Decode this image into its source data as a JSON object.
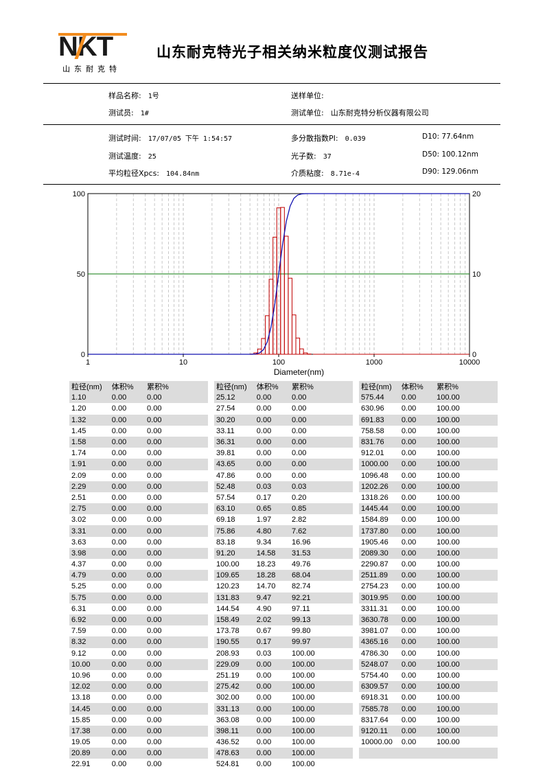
{
  "header": {
    "logo_text": "NKT",
    "logo_sub": "山东耐克特",
    "title": "山东耐克特光子相关纳米粒度仪测试报告"
  },
  "sample": {
    "name_label": "样品名称:",
    "name_value": "1号",
    "tester_label": "测试员:",
    "tester_value": "1#",
    "sender_label": "送样单位:",
    "sender_value": "",
    "unit_label": "测试单位:",
    "unit_value": "山东耐克特分析仪器有限公司"
  },
  "test": {
    "time_label": "测试时间:",
    "time_value": "17/07/05 下午 1:54:57",
    "temp_label": "测试温度:",
    "temp_value": "25",
    "avg_label": "平均粒径Xpcs:",
    "avg_value": "104.84nm",
    "pi_label": "多分散指数PI:",
    "pi_value": "0.039",
    "photon_label": "光子数:",
    "photon_value": "37",
    "visc_label": "介质粘度:",
    "visc_value": "8.71e-4",
    "d10": "D10: 77.64nm",
    "d50": "D50: 100.12nm",
    "d90": "D90: 129.06nm"
  },
  "chart_data": {
    "type": "bar",
    "xlabel": "Diameter(nm)",
    "x_scale": "log",
    "xlim": [
      1,
      10000
    ],
    "x_ticks": [
      "1",
      "10",
      "100",
      "1000",
      "10000"
    ],
    "y_left_ticks": [
      "0",
      "50",
      "100"
    ],
    "y_right_ticks": [
      "0",
      "10",
      "20"
    ],
    "ylim_left": [
      0,
      100
    ],
    "ylim_right": [
      0,
      20
    ],
    "reference_line": 50,
    "series": [
      {
        "type": "bar",
        "axis": "right",
        "x": [
          52.48,
          57.54,
          63.1,
          69.18,
          75.86,
          83.18,
          91.2,
          100.0,
          109.65,
          120.23,
          131.83,
          144.54,
          158.49,
          173.78,
          190.55,
          208.93
        ],
        "values": [
          0.03,
          0.17,
          0.65,
          1.97,
          4.8,
          9.34,
          14.58,
          18.23,
          18.28,
          14.7,
          9.47,
          4.9,
          2.02,
          0.67,
          0.17,
          0.03
        ]
      },
      {
        "type": "line",
        "axis": "left",
        "x": [
          47.86,
          52.48,
          57.54,
          63.1,
          69.18,
          75.86,
          83.18,
          91.2,
          100.0,
          109.65,
          120.23,
          131.83,
          144.54,
          158.49,
          173.78,
          190.55,
          208.93,
          229.09
        ],
        "values": [
          0.0,
          0.03,
          0.2,
          0.85,
          2.82,
          7.62,
          16.96,
          31.53,
          49.76,
          68.04,
          82.74,
          92.21,
          97.11,
          99.13,
          99.8,
          99.97,
          100.0,
          100.0
        ]
      }
    ]
  },
  "table": {
    "headers": [
      "粒径(nm)",
      "体积%",
      "累积%"
    ],
    "columns": [
      [
        [
          "1.10",
          "0.00",
          "0.00"
        ],
        [
          "1.20",
          "0.00",
          "0.00"
        ],
        [
          "1.32",
          "0.00",
          "0.00"
        ],
        [
          "1.45",
          "0.00",
          "0.00"
        ],
        [
          "1.58",
          "0.00",
          "0.00"
        ],
        [
          "1.74",
          "0.00",
          "0.00"
        ],
        [
          "1.91",
          "0.00",
          "0.00"
        ],
        [
          "2.09",
          "0.00",
          "0.00"
        ],
        [
          "2.29",
          "0.00",
          "0.00"
        ],
        [
          "2.51",
          "0.00",
          "0.00"
        ],
        [
          "2.75",
          "0.00",
          "0.00"
        ],
        [
          "3.02",
          "0.00",
          "0.00"
        ],
        [
          "3.31",
          "0.00",
          "0.00"
        ],
        [
          "3.63",
          "0.00",
          "0.00"
        ],
        [
          "3.98",
          "0.00",
          "0.00"
        ],
        [
          "4.37",
          "0.00",
          "0.00"
        ],
        [
          "4.79",
          "0.00",
          "0.00"
        ],
        [
          "5.25",
          "0.00",
          "0.00"
        ],
        [
          "5.75",
          "0.00",
          "0.00"
        ],
        [
          "6.31",
          "0.00",
          "0.00"
        ],
        [
          "6.92",
          "0.00",
          "0.00"
        ],
        [
          "7.59",
          "0.00",
          "0.00"
        ],
        [
          "8.32",
          "0.00",
          "0.00"
        ],
        [
          "9.12",
          "0.00",
          "0.00"
        ],
        [
          "10.00",
          "0.00",
          "0.00"
        ],
        [
          "10.96",
          "0.00",
          "0.00"
        ],
        [
          "12.02",
          "0.00",
          "0.00"
        ],
        [
          "13.18",
          "0.00",
          "0.00"
        ],
        [
          "14.45",
          "0.00",
          "0.00"
        ],
        [
          "15.85",
          "0.00",
          "0.00"
        ],
        [
          "17.38",
          "0.00",
          "0.00"
        ],
        [
          "19.05",
          "0.00",
          "0.00"
        ],
        [
          "20.89",
          "0.00",
          "0.00"
        ],
        [
          "22.91",
          "0.00",
          "0.00"
        ]
      ],
      [
        [
          "25.12",
          "0.00",
          "0.00"
        ],
        [
          "27.54",
          "0.00",
          "0.00"
        ],
        [
          "30.20",
          "0.00",
          "0.00"
        ],
        [
          "33.11",
          "0.00",
          "0.00"
        ],
        [
          "36.31",
          "0.00",
          "0.00"
        ],
        [
          "39.81",
          "0.00",
          "0.00"
        ],
        [
          "43.65",
          "0.00",
          "0.00"
        ],
        [
          "47.86",
          "0.00",
          "0.00"
        ],
        [
          "52.48",
          "0.03",
          "0.03"
        ],
        [
          "57.54",
          "0.17",
          "0.20"
        ],
        [
          "63.10",
          "0.65",
          "0.85"
        ],
        [
          "69.18",
          "1.97",
          "2.82"
        ],
        [
          "75.86",
          "4.80",
          "7.62"
        ],
        [
          "83.18",
          "9.34",
          "16.96"
        ],
        [
          "91.20",
          "14.58",
          "31.53"
        ],
        [
          "100.00",
          "18.23",
          "49.76"
        ],
        [
          "109.65",
          "18.28",
          "68.04"
        ],
        [
          "120.23",
          "14.70",
          "82.74"
        ],
        [
          "131.83",
          "9.47",
          "92.21"
        ],
        [
          "144.54",
          "4.90",
          "97.11"
        ],
        [
          "158.49",
          "2.02",
          "99.13"
        ],
        [
          "173.78",
          "0.67",
          "99.80"
        ],
        [
          "190.55",
          "0.17",
          "99.97"
        ],
        [
          "208.93",
          "0.03",
          "100.00"
        ],
        [
          "229.09",
          "0.00",
          "100.00"
        ],
        [
          "251.19",
          "0.00",
          "100.00"
        ],
        [
          "275.42",
          "0.00",
          "100.00"
        ],
        [
          "302.00",
          "0.00",
          "100.00"
        ],
        [
          "331.13",
          "0.00",
          "100.00"
        ],
        [
          "363.08",
          "0.00",
          "100.00"
        ],
        [
          "398.11",
          "0.00",
          "100.00"
        ],
        [
          "436.52",
          "0.00",
          "100.00"
        ],
        [
          "478.63",
          "0.00",
          "100.00"
        ],
        [
          "524.81",
          "0.00",
          "100.00"
        ]
      ],
      [
        [
          "575.44",
          "0.00",
          "100.00"
        ],
        [
          "630.96",
          "0.00",
          "100.00"
        ],
        [
          "691.83",
          "0.00",
          "100.00"
        ],
        [
          "758.58",
          "0.00",
          "100.00"
        ],
        [
          "831.76",
          "0.00",
          "100.00"
        ],
        [
          "912.01",
          "0.00",
          "100.00"
        ],
        [
          "1000.00",
          "0.00",
          "100.00"
        ],
        [
          "1096.48",
          "0.00",
          "100.00"
        ],
        [
          "1202.26",
          "0.00",
          "100.00"
        ],
        [
          "1318.26",
          "0.00",
          "100.00"
        ],
        [
          "1445.44",
          "0.00",
          "100.00"
        ],
        [
          "1584.89",
          "0.00",
          "100.00"
        ],
        [
          "1737.80",
          "0.00",
          "100.00"
        ],
        [
          "1905.46",
          "0.00",
          "100.00"
        ],
        [
          "2089.30",
          "0.00",
          "100.00"
        ],
        [
          "2290.87",
          "0.00",
          "100.00"
        ],
        [
          "2511.89",
          "0.00",
          "100.00"
        ],
        [
          "2754.23",
          "0.00",
          "100.00"
        ],
        [
          "3019.95",
          "0.00",
          "100.00"
        ],
        [
          "3311.31",
          "0.00",
          "100.00"
        ],
        [
          "3630.78",
          "0.00",
          "100.00"
        ],
        [
          "3981.07",
          "0.00",
          "100.00"
        ],
        [
          "4365.16",
          "0.00",
          "100.00"
        ],
        [
          "4786.30",
          "0.00",
          "100.00"
        ],
        [
          "5248.07",
          "0.00",
          "100.00"
        ],
        [
          "5754.40",
          "0.00",
          "100.00"
        ],
        [
          "6309.57",
          "0.00",
          "100.00"
        ],
        [
          "6918.31",
          "0.00",
          "100.00"
        ],
        [
          "7585.78",
          "0.00",
          "100.00"
        ],
        [
          "8317.64",
          "0.00",
          "100.00"
        ],
        [
          "9120.11",
          "0.00",
          "100.00"
        ],
        [
          "10000.00",
          "0.00",
          "100.00"
        ]
      ]
    ]
  }
}
